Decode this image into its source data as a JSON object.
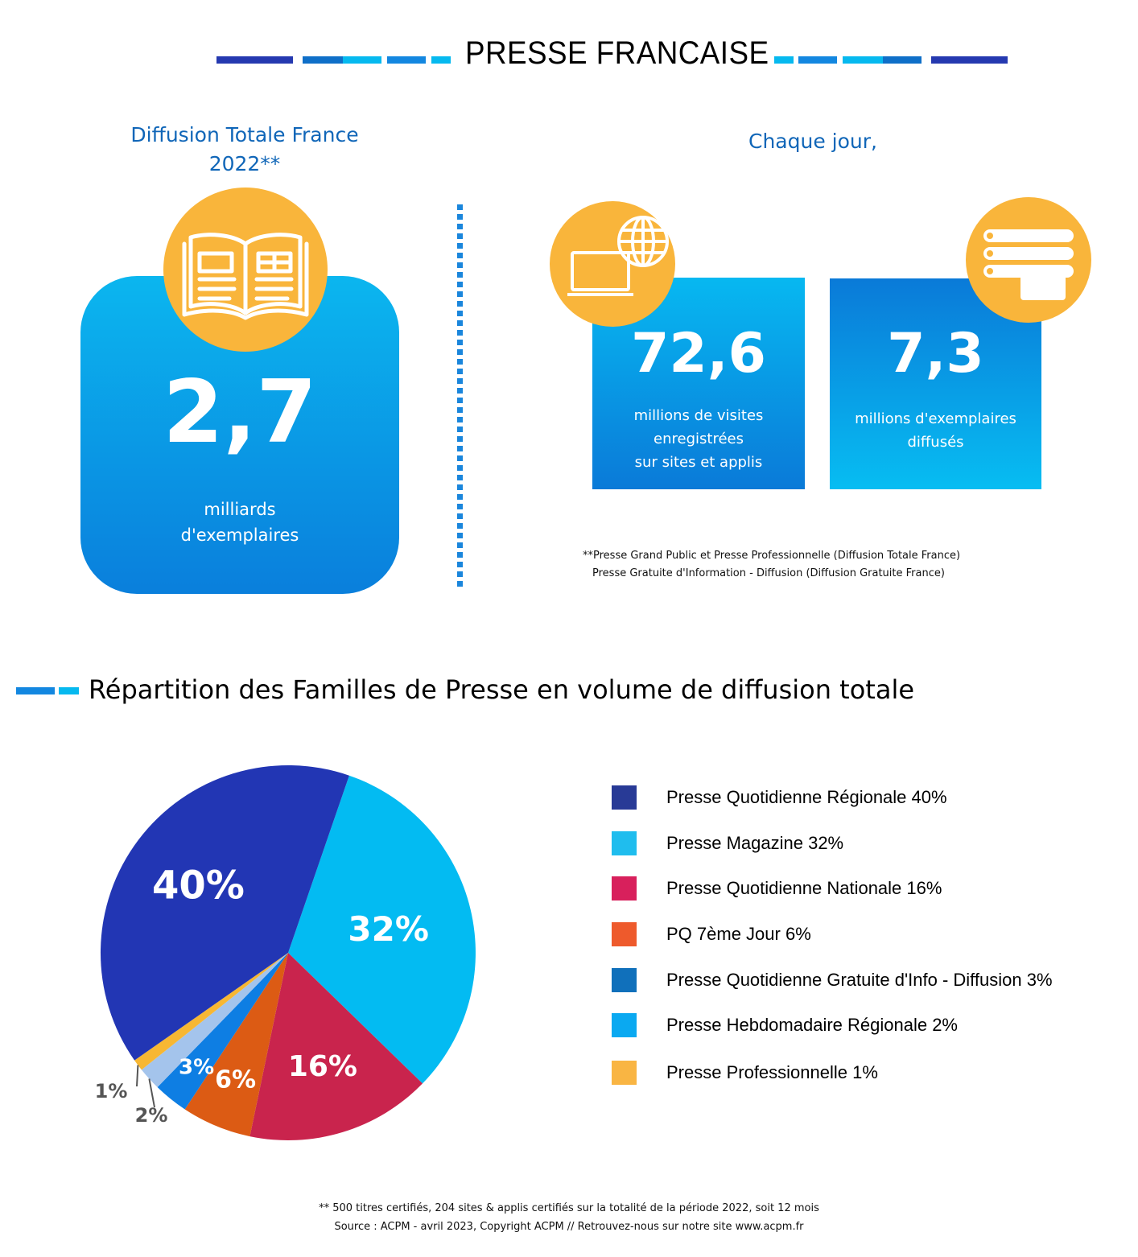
{
  "header": {
    "title": "PRESSE FRANCAISE",
    "dash_colors_left": [
      "#2539b0",
      "#0f6fc8",
      "#06b9ef",
      "#1387e0",
      "#06b9ef"
    ],
    "dash_colors_right": [
      "#06b9ef",
      "#1387e0",
      "#06b9ef",
      "#0f6fc8",
      "#2539b0"
    ]
  },
  "left_panel": {
    "heading_line1": "Diffusion Totale France",
    "heading_line2": "2022**",
    "icon": "open-book-icon",
    "value": "2,7",
    "unit_line1": "milliards",
    "unit_line2": "d'exemplaires"
  },
  "right_panel": {
    "heading": "Chaque jour,",
    "cards": [
      {
        "icon": "laptop-globe-icon",
        "value": "72,6",
        "lines": [
          "millions de visites",
          "enregistrées",
          "sur sites et applis"
        ]
      },
      {
        "icon": "newspaper-rolls-icon",
        "value": "7,3",
        "lines": [
          "millions d'exemplaires",
          "diffusés"
        ]
      }
    ],
    "footnote_line1": "**Presse Grand Public et Presse Professionnelle (Diffusion Totale France)",
    "footnote_line2": "Presse Gratuite d'Information - Diffusion (Diffusion Gratuite France)"
  },
  "section": {
    "title": "Répartition des Familles de Presse en volume de diffusion totale"
  },
  "chart_data": {
    "type": "pie",
    "title": "",
    "slices": [
      {
        "label": "Presse Quotidienne Régionale",
        "value": 40,
        "display": "40%",
        "legend": "Presse Quotidienne Régionale  40%",
        "color": "#2236b4",
        "swatch": "#283a96"
      },
      {
        "label": "Presse Magazine",
        "value": 32,
        "display": "32%",
        "legend": "Presse Magazine  32%",
        "color": "#03bbf2",
        "swatch": "#1fbdee"
      },
      {
        "label": "Presse Quotidienne Nationale",
        "value": 16,
        "display": "16%",
        "legend": "Presse Quotidienne Nationale  16%",
        "color": "#c9244d",
        "swatch": "#d8205c"
      },
      {
        "label": "PQ 7ème Jour",
        "value": 6,
        "display": "6%",
        "legend": "PQ 7ème Jour  6%",
        "color": "#dc5b14",
        "swatch": "#ee5a2c"
      },
      {
        "label": "Presse Quotidienne Gratuite d'Info - Diffusion",
        "value": 3,
        "display": "3%",
        "legend": "Presse Quotidienne Gratuite d'Info - Diffusion  3%",
        "color": "#0e7ee3",
        "swatch": "#1070bb"
      },
      {
        "label": "Presse Hebdomadaire Régionale",
        "value": 2,
        "display": "2%",
        "legend": "Presse Hebdomadaire Régionale  2%",
        "color": "#a4c4ec",
        "swatch": "#0aa9f1"
      },
      {
        "label": "Presse Professionnelle",
        "value": 1,
        "display": "1%",
        "legend": "Presse Professionnelle  1%",
        "color": "#f7b733",
        "swatch": "#f9b543"
      }
    ],
    "legend_position": "right"
  },
  "bottom_note": {
    "line1": "** 500 titres certifiés, 204 sites & applis certifiés sur la totalité de la période 2022, soit 12 mois",
    "line2": "Source : ACPM - avril 2023, Copyright ACPM // Retrouvez-nous sur notre site www.acpm.fr"
  }
}
